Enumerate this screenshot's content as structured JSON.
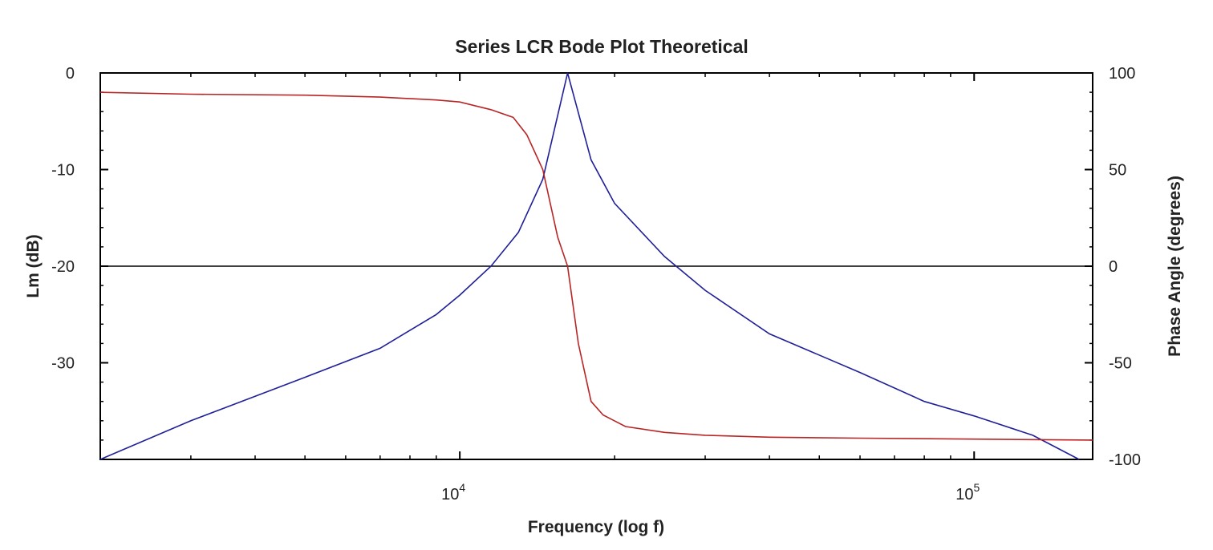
{
  "chart_data": {
    "type": "line",
    "title": "Series LCR Bode Plot Theoretical",
    "xlabel": "Frequency (log f)",
    "ylabel_left": "Lm (dB)",
    "ylabel_right": "Phase Angle (degrees)",
    "x_scale": "log",
    "xlim": [
      2000,
      170000
    ],
    "ylim_left": [
      -40,
      0
    ],
    "ylim_right": [
      -100,
      100
    ],
    "x_major_ticks": [
      {
        "value": 10000,
        "base": "10",
        "exp": "4"
      },
      {
        "value": 100000,
        "base": "10",
        "exp": "5"
      }
    ],
    "y_left_ticks": [
      "0",
      "-10",
      "-20",
      "-30"
    ],
    "y_right_ticks": [
      "100",
      "50",
      "0",
      "-50",
      "-100"
    ],
    "zero_line_right": 0,
    "series": [
      {
        "axis": "left",
        "color": "#1f1f9a",
        "x": [
          2000,
          3000,
          5000,
          7000,
          9000,
          10000,
          11500,
          13000,
          14500,
          16200,
          18000,
          20000,
          25000,
          30000,
          40000,
          60000,
          80000,
          100000,
          130000,
          160000
        ],
        "y": [
          -40,
          -36,
          -31.5,
          -28.5,
          -25,
          -23,
          -20,
          -16.5,
          -11,
          0,
          -9,
          -13.5,
          -19,
          -22.5,
          -27,
          -31,
          -34,
          -35.5,
          -37.5,
          -40
        ]
      },
      {
        "axis": "right",
        "color": "#b82525",
        "x": [
          2000,
          3000,
          5000,
          7000,
          9000,
          10000,
          11500,
          12700,
          13500,
          14500,
          15500,
          16200,
          17000,
          18000,
          19000,
          21000,
          25000,
          30000,
          40000,
          60000,
          100000,
          170000
        ],
        "y": [
          90,
          89,
          88.5,
          87.5,
          86,
          85,
          81,
          77,
          68,
          50,
          15,
          0,
          -40,
          -70,
          -77,
          -83,
          -86,
          -87.5,
          -88.5,
          -89,
          -89.5,
          -90
        ]
      }
    ]
  }
}
